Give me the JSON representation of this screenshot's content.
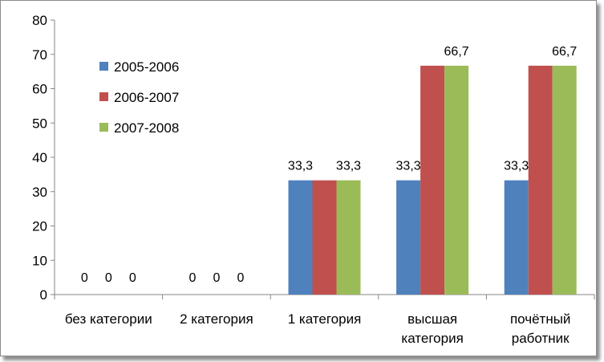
{
  "chart_data": {
    "type": "bar",
    "categories": [
      [
        "без категории"
      ],
      [
        "2 категория"
      ],
      [
        "1 категория"
      ],
      [
        "высшая",
        "категория"
      ],
      [
        "почётный",
        "работник"
      ]
    ],
    "series": [
      {
        "name": "2005-2006",
        "color": "#4f81bd",
        "values": [
          0,
          0,
          33.3,
          33.3,
          33.3
        ],
        "labels": [
          "0",
          "0",
          "33,3",
          "33,3",
          "33,3"
        ]
      },
      {
        "name": "2006-2007",
        "color": "#c0504d",
        "values": [
          0,
          0,
          33.3,
          66.7,
          66.7
        ],
        "labels": [
          "0",
          "0",
          "",
          "",
          ""
        ]
      },
      {
        "name": "2007-2008",
        "color": "#9bbb59",
        "values": [
          0,
          0,
          33.3,
          66.7,
          66.7
        ],
        "labels": [
          "0",
          "0",
          "33,3",
          "66,7",
          "66,7"
        ]
      }
    ],
    "ylim": [
      0,
      80
    ],
    "yticks": [
      0,
      10,
      20,
      30,
      40,
      50,
      60,
      70,
      80
    ],
    "grid": false,
    "legend": "top-left"
  }
}
